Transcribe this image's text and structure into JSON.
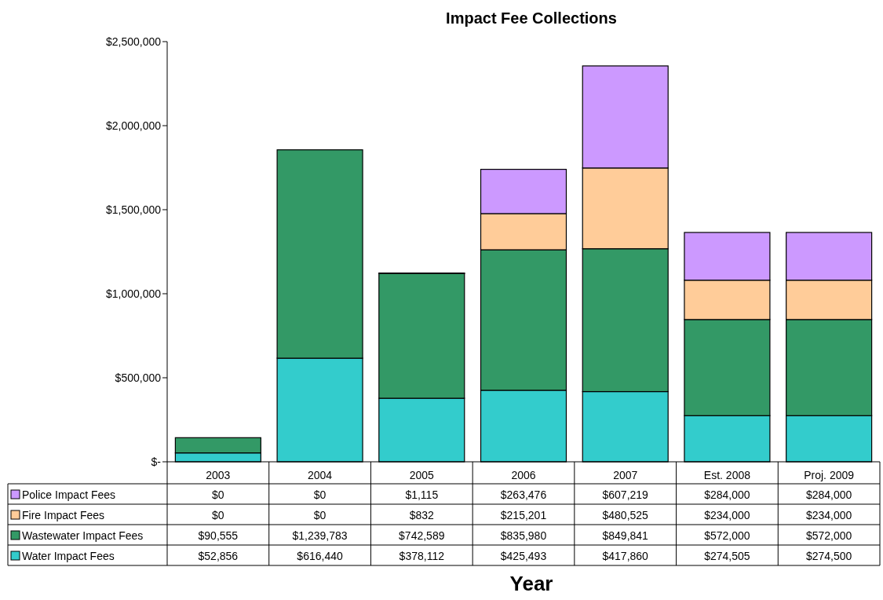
{
  "chart_data": {
    "type": "bar",
    "title": "Impact Fee Collections",
    "xlabel": "Year",
    "stacked": true,
    "legend": "bottom left",
    "grid": false,
    "categories": [
      "2003",
      "2004",
      "2005",
      "2006",
      "2007",
      "Est. 2008",
      "Proj. 2009"
    ],
    "ylim": [
      0,
      2500000
    ],
    "yticks": [
      {
        "value": 0,
        "label": "$-"
      },
      {
        "value": 500000,
        "label": "$500,000"
      },
      {
        "value": 1000000,
        "label": "$1,000,000"
      },
      {
        "value": 1500000,
        "label": "$1,500,000"
      },
      {
        "value": 2000000,
        "label": "$2,000,000"
      },
      {
        "value": 2500000,
        "label": "$2,500,000"
      }
    ],
    "series": [
      {
        "name": "Water Impact Fees",
        "color": "#33cccc",
        "values": [
          52856,
          616440,
          378112,
          425493,
          417860,
          274505,
          274500
        ],
        "value_labels": [
          "$52,856",
          "$616,440",
          "$378,112",
          "$425,493",
          "$417,860",
          "$274,505",
          "$274,500"
        ]
      },
      {
        "name": "Wastewater Impact Fees",
        "color": "#339966",
        "values": [
          90555,
          1239783,
          742589,
          835980,
          849841,
          572000,
          572000
        ],
        "value_labels": [
          "$90,555",
          "$1,239,783",
          "$742,589",
          "$835,980",
          "$849,841",
          "$572,000",
          "$572,000"
        ]
      },
      {
        "name": "Fire Impact Fees",
        "color": "#ffcc99",
        "values": [
          0,
          0,
          832,
          215201,
          480525,
          234000,
          234000
        ],
        "value_labels": [
          "$0",
          "$0",
          "$832",
          "$215,201",
          "$480,525",
          "$234,000",
          "$234,000"
        ]
      },
      {
        "name": "Police Impact Fees",
        "color": "#cc99ff",
        "values": [
          0,
          0,
          1115,
          263476,
          607219,
          284000,
          284000
        ],
        "value_labels": [
          "$0",
          "$0",
          "$1,115",
          "$263,476",
          "$607,219",
          "$284,000",
          "$284,000"
        ]
      }
    ]
  }
}
